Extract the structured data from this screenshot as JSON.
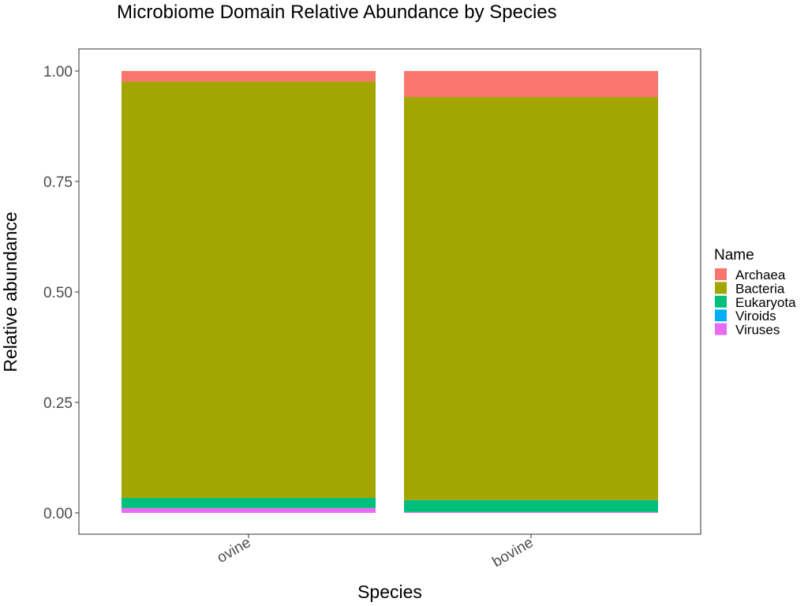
{
  "chart_data": {
    "type": "bar",
    "stacked": true,
    "title": "Microbiome Domain Relative Abundance by Species",
    "xlabel": "Species",
    "ylabel": "Relative abundance",
    "categories": [
      "ovine",
      "bovine"
    ],
    "ylim": [
      -0.05,
      1.05
    ],
    "yticks": [
      0.0,
      0.25,
      0.5,
      0.75,
      1.0
    ],
    "ytick_labels": [
      "0.00",
      "0.25",
      "0.50",
      "0.75",
      "1.00"
    ],
    "grid": false,
    "legend": {
      "title": "Name",
      "position": "right"
    },
    "stack_order_bottom_to_top": [
      "Viruses",
      "Viroids",
      "Eukaryota",
      "Bacteria",
      "Archaea"
    ],
    "series": [
      {
        "name": "Archaea",
        "color": "#F8766D",
        "values": [
          0.024,
          0.059
        ]
      },
      {
        "name": "Bacteria",
        "color": "#A3A500",
        "values": [
          0.942,
          0.912
        ]
      },
      {
        "name": "Eukaryota",
        "color": "#00BF7D",
        "values": [
          0.023,
          0.027
        ]
      },
      {
        "name": "Viroids",
        "color": "#00B0F6",
        "values": [
          0.0,
          0.0
        ]
      },
      {
        "name": "Viruses",
        "color": "#E76BF3",
        "values": [
          0.011,
          0.002
        ]
      }
    ]
  }
}
